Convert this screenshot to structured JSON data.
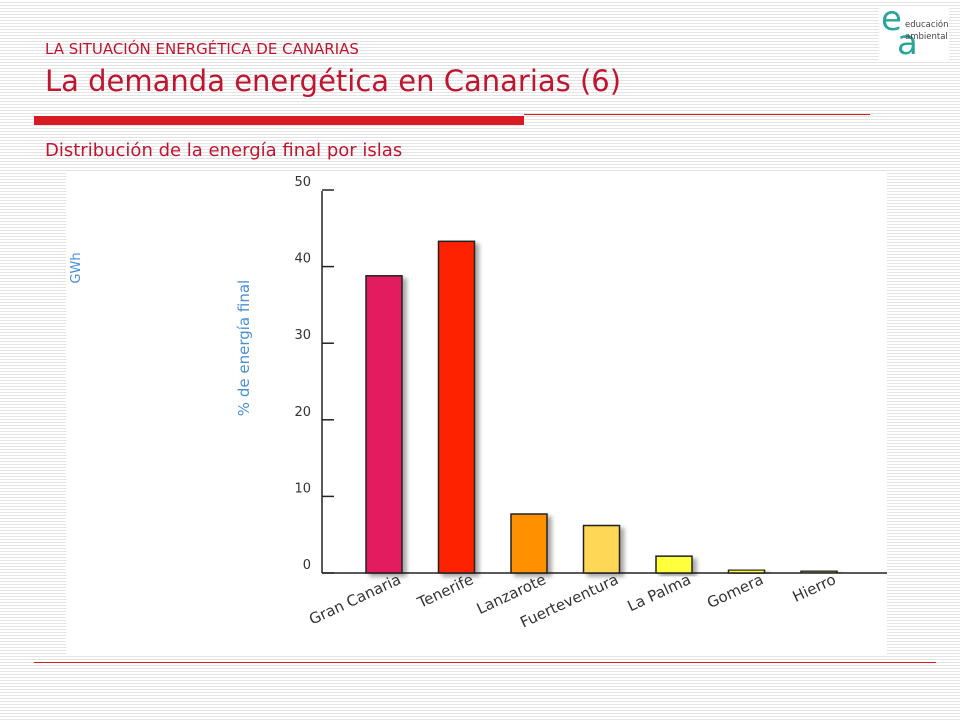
{
  "header": {
    "eyebrow": "LA SITUACIÓN ENERGÉTICA DE CANARIAS",
    "title": "La demanda energética en Canarias (6)",
    "subtitle": "Distribución de la energía final por islas"
  },
  "logo": {
    "letter_e": "e",
    "letter_a": "a",
    "line1": "educación",
    "line2": "ambiental"
  },
  "colors": {
    "accent": "#c0152f",
    "rule": "#d81a22",
    "axis_label": "#4a8fd8"
  },
  "chart_data": {
    "type": "bar",
    "title": "",
    "xlabel": "",
    "ylabel": "% de energía final",
    "unit_label": "GWh",
    "ylim": [
      0,
      50
    ],
    "yticks": [
      0,
      10,
      20,
      30,
      40,
      50
    ],
    "categories": [
      "Gran Canaria",
      "Tenerife",
      "Lanzarote",
      "Fuerteventura",
      "La Palma",
      "Gomera",
      "Hierro"
    ],
    "values": [
      38.8,
      43.3,
      7.7,
      6.2,
      2.2,
      0.4,
      0.2
    ],
    "colors": [
      "#e31c5f",
      "#ff2300",
      "#ff9100",
      "#ffd756",
      "#ffff3a",
      "#ffff3a",
      "#a6a64a"
    ],
    "grid": false,
    "legend": "none"
  }
}
